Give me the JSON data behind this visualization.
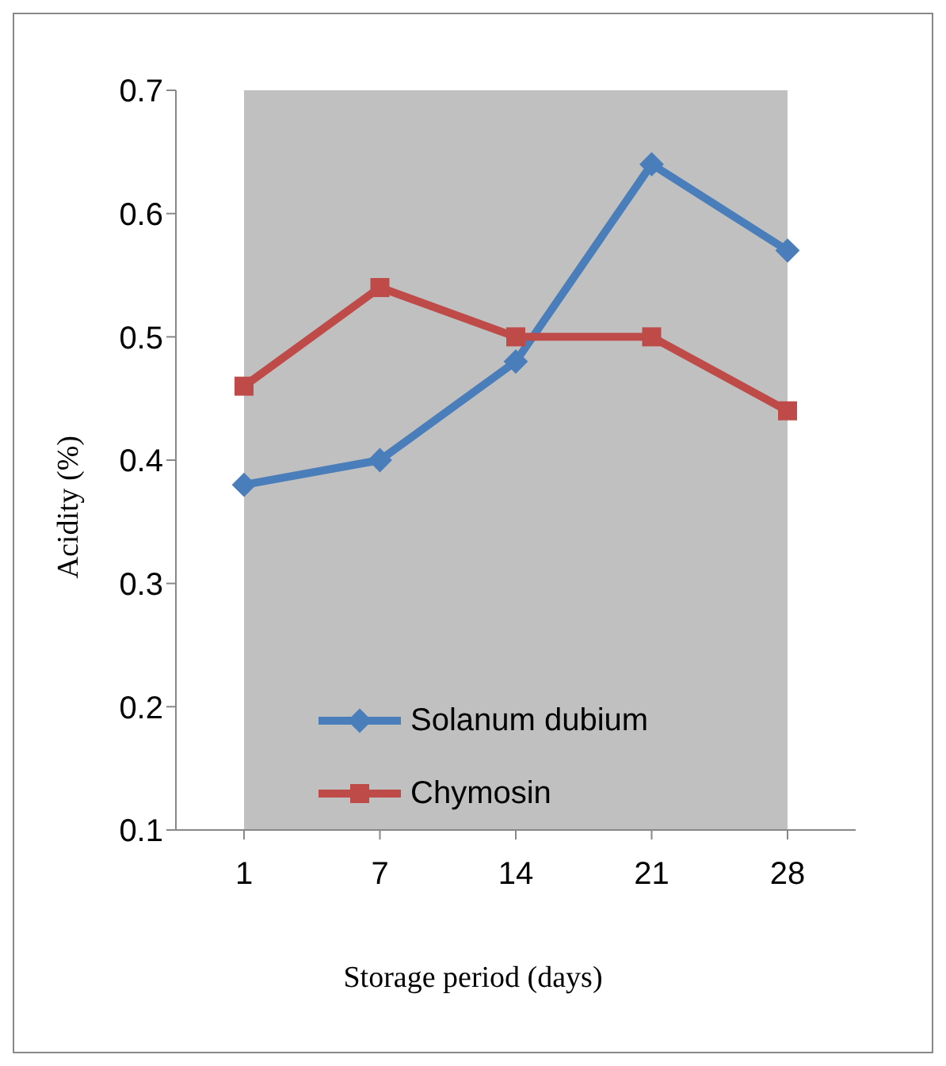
{
  "chart_data": {
    "type": "line",
    "xlabel": "Storage period (days)",
    "ylabel": "Acidity (%)",
    "categories": [
      "1",
      "7",
      "14",
      "21",
      "28"
    ],
    "series": [
      {
        "name": "Solanum dubium",
        "color": "#4a7ebb",
        "marker": "diamond",
        "values": [
          0.38,
          0.4,
          0.48,
          0.64,
          0.57
        ]
      },
      {
        "name": "Chymosin",
        "color": "#be4b48",
        "marker": "square",
        "values": [
          0.46,
          0.54,
          0.5,
          0.5,
          0.44
        ]
      }
    ],
    "ylim": [
      0.1,
      0.7
    ],
    "yticks": [
      0.1,
      0.2,
      0.3,
      0.4,
      0.5,
      0.6,
      0.7
    ],
    "grid": false,
    "legend": "bottom",
    "line_style": "solid"
  }
}
